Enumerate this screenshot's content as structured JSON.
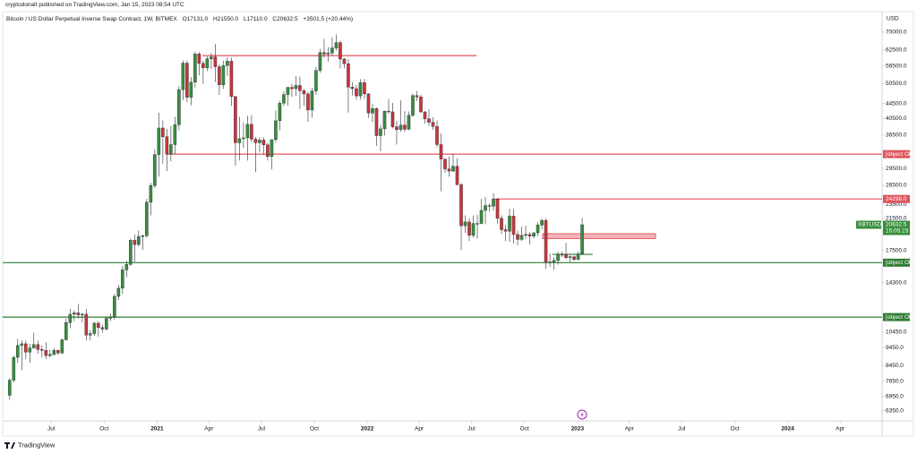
{
  "publish_note": "cryptodonalt published on TradingView.com, Jan 15, 2023 08:54 UTC",
  "footer": "TradingView",
  "chart_data": {
    "type": "candlestick",
    "title": "Bitcoin / US Dollar Perpetual Inverse Swap Contract, 1W, BITMEX",
    "header_values": [
      "O17131.0",
      "H21550.0",
      "L17110.0",
      "C20632.5",
      "+3501.5 (+20.44%)"
    ],
    "currency": "USD",
    "symbol_tag": "XBTUSD",
    "countdown": "15:05:23",
    "log_scale": true,
    "up_color": "#388e3c",
    "down_color": "#c8353b",
    "xlim": [
      -2.4,
      216.4
    ],
    "ylim": [
      5950,
      85800
    ],
    "xticks": [
      {
        "value": 10.29,
        "label": "Jul"
      },
      {
        "value": 23.43,
        "label": "Oct"
      },
      {
        "value": 36.57,
        "label": "2021"
      },
      {
        "value": 49.43,
        "label": "Apr"
      },
      {
        "value": 62.43,
        "label": "Jul"
      },
      {
        "value": 75.57,
        "label": "Oct"
      },
      {
        "value": 88.71,
        "label": "2022"
      },
      {
        "value": 101.57,
        "label": "Apr"
      },
      {
        "value": 114.57,
        "label": "Jul"
      },
      {
        "value": 127.71,
        "label": "Oct"
      },
      {
        "value": 140.86,
        "label": "2023"
      },
      {
        "value": 153.71,
        "label": "Apr"
      },
      {
        "value": 166.71,
        "label": "Jul"
      },
      {
        "value": 179.86,
        "label": "Oct"
      },
      {
        "value": 193,
        "label": "2024"
      },
      {
        "value": 206,
        "label": "Apr"
      }
    ],
    "yticks": [
      {
        "value": 70000,
        "label": "70000.0"
      },
      {
        "value": 62500,
        "label": "62500.0"
      },
      {
        "value": 56500,
        "label": "56500.0"
      },
      {
        "value": 50500,
        "label": "50500.0"
      },
      {
        "value": 44500,
        "label": "44500.0"
      },
      {
        "value": 40500,
        "label": "40500.0"
      },
      {
        "value": 36500,
        "label": "36500.0"
      },
      {
        "value": 29500,
        "label": "29500.0"
      },
      {
        "value": 26500,
        "label": "26500.0"
      },
      {
        "value": 23500,
        "label": "23500.0"
      },
      {
        "value": 21500,
        "label": "21500.0"
      },
      {
        "value": 17500,
        "label": "17500.0"
      },
      {
        "value": 14300,
        "label": "14300.0"
      },
      {
        "value": 10450,
        "label": "10450.0"
      },
      {
        "value": 9450,
        "label": "9450.0"
      },
      {
        "value": 8450,
        "label": "8450.0"
      },
      {
        "value": 7650,
        "label": "7650.0"
      },
      {
        "value": 6950,
        "label": "6950.0"
      },
      {
        "value": 6350,
        "label": "6350.0"
      }
    ],
    "levels": [
      {
        "value": 60300,
        "color": "#e0535b",
        "start": 47.8,
        "end": 115.8
      },
      {
        "value": 32290.5,
        "color": "#e0535b",
        "start": 38.9,
        "tag": true
      },
      {
        "value": 24298,
        "label": "24298.0",
        "color": "#e0535b",
        "start": 120.2,
        "tag": true
      },
      {
        "value": 16224.5,
        "color": "#2e7d32",
        "tag": true
      },
      {
        "value": 11490.5,
        "color": "#2e7d32",
        "tag": true
      },
      {
        "value": 17100,
        "color": "#2e7d32",
        "start": 134.6,
        "end": 144.6
      }
    ],
    "zones": [
      {
        "range": [
          18900,
          19500
        ],
        "start": 132.2,
        "end": 160.2,
        "color": "#f4b3b8",
        "border": "#d9434c"
      }
    ],
    "ohlc": [
      [
        7000,
        7800,
        6800,
        7700
      ],
      [
        7700,
        9000,
        7600,
        8900
      ],
      [
        8900,
        10000,
        8600,
        9600
      ],
      [
        9600,
        9900,
        8200,
        9700
      ],
      [
        9700,
        9900,
        8800,
        9200
      ],
      [
        9200,
        9700,
        8600,
        9450
      ],
      [
        9450,
        10400,
        9400,
        9650
      ],
      [
        9650,
        9900,
        9100,
        9350
      ],
      [
        9350,
        9600,
        8900,
        9300
      ],
      [
        9300,
        9800,
        8800,
        9000
      ],
      [
        9000,
        9350,
        8900,
        9070
      ],
      [
        9070,
        9450,
        9000,
        9300
      ],
      [
        9300,
        9350,
        9050,
        9150
      ],
      [
        9150,
        10000,
        9100,
        9950
      ],
      [
        9950,
        11400,
        9900,
        11100
      ],
      [
        11100,
        12100,
        10700,
        11700
      ],
      [
        11700,
        12000,
        11200,
        11800
      ],
      [
        11800,
        12500,
        11400,
        11650
      ],
      [
        11650,
        11800,
        11100,
        11700
      ],
      [
        11700,
        12100,
        9900,
        10250
      ],
      [
        10250,
        10600,
        9900,
        10350
      ],
      [
        10350,
        11150,
        10200,
        11050
      ],
      [
        11050,
        11200,
        10150,
        10750
      ],
      [
        10750,
        10950,
        10400,
        10650
      ],
      [
        10650,
        11500,
        10550,
        11400
      ],
      [
        11400,
        11750,
        11200,
        11500
      ],
      [
        11500,
        13300,
        11300,
        13100
      ],
      [
        13100,
        14100,
        12800,
        13800
      ],
      [
        13800,
        15900,
        13300,
        15500
      ],
      [
        15500,
        16400,
        14800,
        16050
      ],
      [
        16050,
        18900,
        15900,
        18700
      ],
      [
        18700,
        19400,
        16300,
        18200
      ],
      [
        18200,
        19900,
        18000,
        19150
      ],
      [
        19150,
        19400,
        17600,
        19250
      ],
      [
        19250,
        24300,
        19000,
        23800
      ],
      [
        23800,
        26900,
        21900,
        26450
      ],
      [
        26450,
        33300,
        26100,
        32200
      ],
      [
        32200,
        42000,
        28000,
        38100
      ],
      [
        38100,
        40000,
        30400,
        36050
      ],
      [
        36050,
        37900,
        29000,
        32300
      ],
      [
        32300,
        38600,
        30800,
        34300
      ],
      [
        34300,
        40900,
        32300,
        38900
      ],
      [
        38900,
        49700,
        37500,
        48600
      ],
      [
        48600,
        58400,
        45500,
        57500
      ],
      [
        57500,
        58400,
        44900,
        46300
      ],
      [
        46300,
        52600,
        44000,
        50950
      ],
      [
        50950,
        61800,
        49200,
        60950
      ],
      [
        60950,
        61700,
        53200,
        57400
      ],
      [
        57400,
        58400,
        50400,
        55800
      ],
      [
        55800,
        60000,
        54700,
        59100
      ],
      [
        59100,
        61300,
        55400,
        59800
      ],
      [
        59800,
        64900,
        51000,
        56200
      ],
      [
        56200,
        57000,
        47000,
        50100
      ],
      [
        50100,
        58400,
        48800,
        56600
      ],
      [
        56600,
        59600,
        52900,
        58200
      ],
      [
        58200,
        59500,
        43800,
        46500
      ],
      [
        46500,
        46700,
        30000,
        34700
      ],
      [
        34700,
        40900,
        31000,
        35600
      ],
      [
        35600,
        39500,
        33500,
        35800
      ],
      [
        35800,
        41200,
        31000,
        39000
      ],
      [
        39000,
        41300,
        34900,
        35500
      ],
      [
        35500,
        36000,
        28800,
        34700
      ],
      [
        34700,
        36000,
        32700,
        35300
      ],
      [
        35300,
        35900,
        32200,
        34250
      ],
      [
        34250,
        34700,
        31000,
        31800
      ],
      [
        31800,
        35400,
        29300,
        35400
      ],
      [
        35400,
        42600,
        34800,
        39900
      ],
      [
        39900,
        45300,
        37500,
        44600
      ],
      [
        44600,
        48100,
        43800,
        47100
      ],
      [
        47100,
        49500,
        43900,
        49300
      ],
      [
        49300,
        50500,
        46400,
        48900
      ],
      [
        48900,
        52900,
        46600,
        49900
      ],
      [
        49900,
        52800,
        43000,
        48300
      ],
      [
        48300,
        48800,
        43800,
        47300
      ],
      [
        47300,
        47900,
        39600,
        42700
      ],
      [
        42700,
        49200,
        40700,
        48200
      ],
      [
        48200,
        56100,
        47000,
        54900
      ],
      [
        54900,
        62900,
        54100,
        61500
      ],
      [
        61500,
        67000,
        59500,
        60900
      ],
      [
        60900,
        63700,
        58000,
        61300
      ],
      [
        61300,
        67800,
        60200,
        63300
      ],
      [
        63300,
        69000,
        62300,
        65500
      ],
      [
        65500,
        66300,
        55600,
        59000
      ],
      [
        59000,
        59400,
        55600,
        57300
      ],
      [
        57300,
        59000,
        42000,
        49400
      ],
      [
        49400,
        51000,
        46800,
        48900
      ],
      [
        48900,
        50100,
        45600,
        46700
      ],
      [
        46700,
        51900,
        45600,
        50800
      ],
      [
        50800,
        52000,
        45800,
        47300
      ],
      [
        47300,
        47500,
        40600,
        41900
      ],
      [
        41900,
        44500,
        39600,
        43100
      ],
      [
        43100,
        43400,
        34000,
        36300
      ],
      [
        36300,
        38900,
        32900,
        37900
      ],
      [
        37900,
        42600,
        36300,
        42400
      ],
      [
        42400,
        45800,
        41700,
        42200
      ],
      [
        42200,
        44700,
        38000,
        38400
      ],
      [
        38400,
        39900,
        34300,
        37700
      ],
      [
        37700,
        45400,
        37200,
        38800
      ],
      [
        38800,
        42400,
        37200,
        37800
      ],
      [
        37800,
        42300,
        37600,
        41300
      ],
      [
        41300,
        47400,
        40800,
        46800
      ],
      [
        46800,
        48200,
        45200,
        46400
      ],
      [
        46400,
        47100,
        41900,
        42200
      ],
      [
        42200,
        42400,
        39200,
        40400
      ],
      [
        40400,
        42900,
        38600,
        39500
      ],
      [
        39500,
        40800,
        37700,
        38500
      ],
      [
        38500,
        40000,
        33700,
        34300
      ],
      [
        34300,
        36800,
        25500,
        31300
      ],
      [
        31300,
        31300,
        28700,
        29400
      ],
      [
        29400,
        31800,
        28000,
        29000
      ],
      [
        29000,
        32400,
        28800,
        29900
      ],
      [
        29900,
        31500,
        26500,
        26600
      ],
      [
        26600,
        26900,
        17600,
        20500
      ],
      [
        20500,
        21900,
        19600,
        21000
      ],
      [
        21000,
        21500,
        18600,
        19300
      ],
      [
        19300,
        21900,
        19000,
        20800
      ],
      [
        20800,
        22000,
        18900,
        20800
      ],
      [
        20800,
        24300,
        20700,
        22600
      ],
      [
        22600,
        24600,
        20700,
        23300
      ],
      [
        23300,
        23600,
        22400,
        23200
      ],
      [
        23200,
        25200,
        22600,
        24300
      ],
      [
        24300,
        24400,
        20800,
        21500
      ],
      [
        21500,
        21900,
        19500,
        20000
      ],
      [
        20000,
        20600,
        18600,
        19800
      ],
      [
        19800,
        22800,
        18500,
        21800
      ],
      [
        21800,
        22800,
        18300,
        19400
      ],
      [
        19400,
        19900,
        18100,
        18800
      ],
      [
        18800,
        20400,
        18600,
        19300
      ],
      [
        19300,
        20500,
        18900,
        19400
      ],
      [
        19400,
        19700,
        18200,
        19200
      ],
      [
        19200,
        19700,
        18900,
        19600
      ],
      [
        19600,
        21000,
        19200,
        20600
      ],
      [
        20600,
        21500,
        20000,
        21200
      ],
      [
        21200,
        21500,
        15600,
        16300
      ],
      [
        16300,
        17200,
        15800,
        16300
      ],
      [
        16300,
        16800,
        15500,
        16450
      ],
      [
        16450,
        17400,
        16000,
        17100
      ],
      [
        17100,
        17400,
        16800,
        17100
      ],
      [
        17100,
        18400,
        16600,
        16750
      ],
      [
        16750,
        17000,
        16300,
        16850
      ],
      [
        16850,
        16950,
        16400,
        16550
      ],
      [
        16550,
        17400,
        16500,
        17150
      ],
      [
        17131,
        21550,
        17110,
        20632.5
      ]
    ]
  }
}
